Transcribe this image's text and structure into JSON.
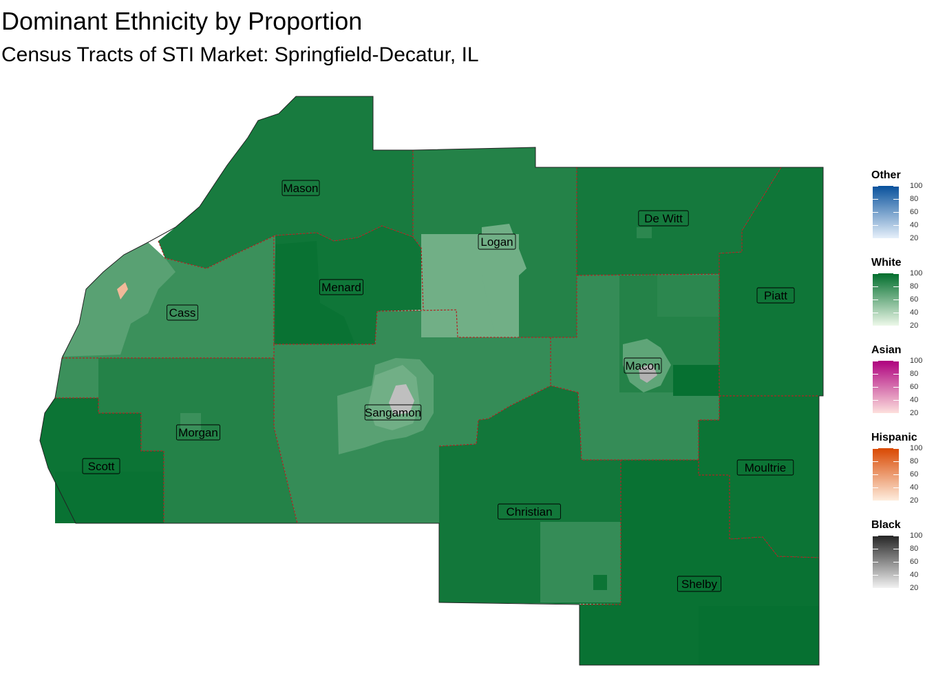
{
  "title": "Dominant Ethnicity by Proportion",
  "subtitle": "Census Tracts of STI Market: Springfield-Decatur, IL",
  "counties": [
    {
      "name": "Mason",
      "dominant": "White",
      "pct": 92
    },
    {
      "name": "De Witt",
      "dominant": "White",
      "pct": 93
    },
    {
      "name": "Logan",
      "dominant": "White",
      "pct": 88
    },
    {
      "name": "Menard",
      "dominant": "White",
      "pct": 95
    },
    {
      "name": "Cass",
      "dominant": "White",
      "pct": 80
    },
    {
      "name": "Piatt",
      "dominant": "White",
      "pct": 95
    },
    {
      "name": "Macon",
      "dominant": "White",
      "pct": 82
    },
    {
      "name": "Sangamon",
      "dominant": "White",
      "pct": 82
    },
    {
      "name": "Morgan",
      "dominant": "White",
      "pct": 88
    },
    {
      "name": "Scott",
      "dominant": "White",
      "pct": 96
    },
    {
      "name": "Moultrie",
      "dominant": "White",
      "pct": 96
    },
    {
      "name": "Christian",
      "dominant": "White",
      "pct": 94
    },
    {
      "name": "Shelby",
      "dominant": "White",
      "pct": 97
    }
  ],
  "legends": [
    {
      "title": "Other",
      "low": "#e6f0fa",
      "high": "#08519c",
      "ticks": [
        "100",
        "80",
        "60",
        "40",
        "20"
      ]
    },
    {
      "title": "White",
      "low": "#edf8e9",
      "high": "#006d2c",
      "ticks": [
        "100",
        "80",
        "60",
        "40",
        "20"
      ]
    },
    {
      "title": "Asian",
      "low": "#fde0dd",
      "high": "#ae017e",
      "ticks": [
        "100",
        "80",
        "60",
        "40",
        "20"
      ]
    },
    {
      "title": "Hispanic",
      "low": "#feedde",
      "high": "#d94801",
      "ticks": [
        "100",
        "80",
        "60",
        "40",
        "20"
      ]
    },
    {
      "title": "Black",
      "low": "#f2f2f2",
      "high": "#252525",
      "ticks": [
        "100",
        "80",
        "60",
        "40",
        "20"
      ]
    }
  ],
  "county_border_color": "#b22222"
}
